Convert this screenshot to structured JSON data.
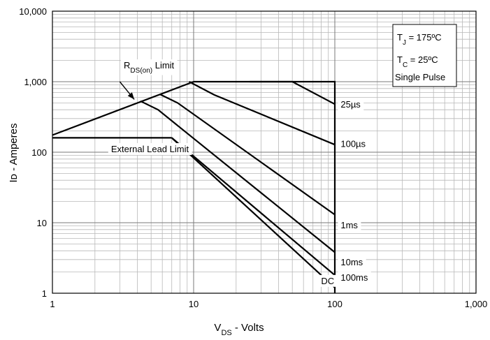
{
  "chart_data": {
    "type": "line",
    "xscale": "log",
    "yscale": "log",
    "xlim": [
      1,
      1000
    ],
    "ylim": [
      1,
      10000
    ],
    "xlabel": {
      "main": "V",
      "sub": "DS",
      "rest": " - Volts"
    },
    "ylabel": "Iᴅ - Amperes",
    "x_ticks": [
      {
        "value": 1,
        "label": "1"
      },
      {
        "value": 10,
        "label": "10"
      },
      {
        "value": 100,
        "label": "100"
      },
      {
        "value": 1000,
        "label": "1,000"
      }
    ],
    "y_ticks": [
      {
        "value": 1,
        "label": "1"
      },
      {
        "value": 10,
        "label": "10"
      },
      {
        "value": 100,
        "label": "100"
      },
      {
        "value": 1000,
        "label": "1,000"
      },
      {
        "value": 10000,
        "label": "10,000"
      }
    ],
    "grid": true,
    "conditions": {
      "tj": {
        "main": "T",
        "sub": "J",
        "rest": " = 175ºC"
      },
      "tc": {
        "main": "T",
        "sub": "C",
        "rest": " = 25ºC"
      },
      "pulse": "Single Pulse"
    },
    "series": [
      {
        "id": "rds_limit",
        "label": {
          "main": "R",
          "sub": "DS(on)",
          "rest": " Limit"
        },
        "x": [
          1,
          10
        ],
        "y": [
          175,
          1000
        ]
      },
      {
        "id": "lead_limit",
        "label": "External Lead Limit",
        "x": [
          1,
          7
        ],
        "y": [
          160,
          160
        ]
      },
      {
        "id": "t25us",
        "label": "25µs",
        "x": [
          10,
          100,
          100
        ],
        "y": [
          1000,
          1000,
          1
        ]
      },
      {
        "id": "t100us",
        "label": "100µs",
        "x": [
          25,
          50,
          100
        ],
        "y": [
          1000,
          1000,
          480
        ]
      },
      {
        "id": "t1ms",
        "label": "1ms",
        "x": [
          9.3,
          14,
          100
        ],
        "y": [
          1000,
          650,
          128
        ]
      },
      {
        "id": "t10ms",
        "label": "10ms",
        "x": [
          5.8,
          7.7,
          100
        ],
        "y": [
          660,
          500,
          13
        ]
      },
      {
        "id": "t100ms",
        "label": "100ms",
        "x": [
          4.2,
          5.6,
          100
        ],
        "y": [
          530,
          400,
          3.8
        ]
      },
      {
        "id": "dc",
        "label": "DC",
        "x": [
          7,
          100
        ],
        "y": [
          160,
          1.8
        ]
      },
      {
        "id": "dc_lead",
        "label": "",
        "x": [
          7,
          100
        ],
        "y": [
          160,
          1.2
        ]
      }
    ],
    "labels": {
      "t25us": {
        "x": 110,
        "y": 430
      },
      "t100us": {
        "x": 110,
        "y": 119
      },
      "t1ms": {
        "x": 110,
        "y": 8.3
      },
      "t10ms": {
        "x": 110,
        "y": 2.5
      },
      "t100ms": {
        "x": 110,
        "y": 1.5
      },
      "dc": {
        "x": 80,
        "y": 1.35
      },
      "lead_limit": {
        "x": 2.6,
        "y": 100
      },
      "rds_limit": {
        "x": 3.2,
        "y": 1540
      }
    },
    "rds_arrow": {
      "from": {
        "x": 3.0,
        "y": 1000
      },
      "to": {
        "x": 3.8,
        "y": 560
      }
    }
  }
}
